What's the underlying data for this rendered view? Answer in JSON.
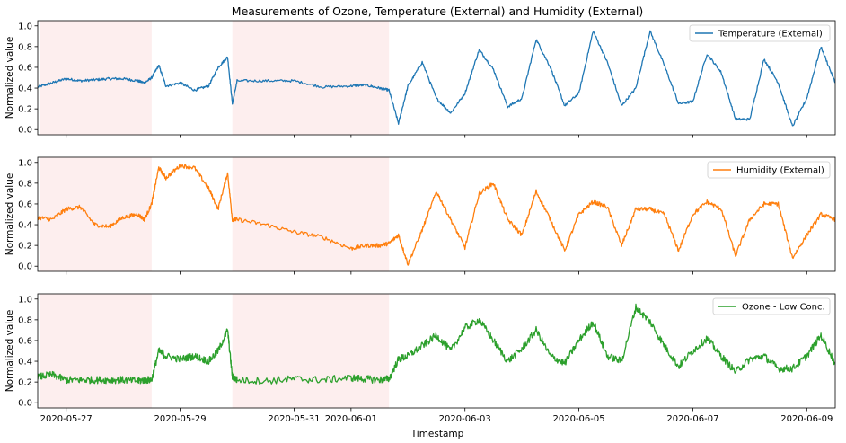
{
  "figure": {
    "title": "Measurements of Ozone, Temperature (External) and Humidity (External)",
    "xlabel": "Timestamp",
    "ylabel": "Normalized value"
  },
  "chart_data": [
    {
      "type": "line",
      "series": [
        {
          "name": "Temperature (External)",
          "color": "#1f77b4",
          "x": [
            "2020-05-26 12:00",
            "2020-05-26 18:00",
            "2020-05-27 00:00",
            "2020-05-27 06:00",
            "2020-05-27 12:00",
            "2020-05-27 18:00",
            "2020-05-28 00:00",
            "2020-05-28 06:00",
            "2020-05-28 09:00",
            "2020-05-28 12:00",
            "2020-05-28 15:00",
            "2020-05-28 18:00",
            "2020-05-29 00:00",
            "2020-05-29 06:00",
            "2020-05-29 12:00",
            "2020-05-29 16:00",
            "2020-05-29 20:00",
            "2020-05-29 22:00",
            "2020-05-30 00:00",
            "2020-05-30 12:00",
            "2020-05-31 00:00",
            "2020-05-31 12:00",
            "2020-06-01 00:00",
            "2020-06-01 06:00",
            "2020-06-01 12:00",
            "2020-06-01 16:00",
            "2020-06-01 20:00",
            "2020-06-02 00:00",
            "2020-06-02 06:00",
            "2020-06-02 12:00",
            "2020-06-02 18:00",
            "2020-06-03 00:00",
            "2020-06-03 06:00",
            "2020-06-03 12:00",
            "2020-06-03 18:00",
            "2020-06-04 00:00",
            "2020-06-04 06:00",
            "2020-06-04 12:00",
            "2020-06-04 18:00",
            "2020-06-05 00:00",
            "2020-06-05 06:00",
            "2020-06-05 12:00",
            "2020-06-05 18:00",
            "2020-06-06 00:00",
            "2020-06-06 06:00",
            "2020-06-06 12:00",
            "2020-06-06 18:00",
            "2020-06-07 00:00",
            "2020-06-07 06:00",
            "2020-06-07 12:00",
            "2020-06-07 18:00",
            "2020-06-08 00:00",
            "2020-06-08 06:00",
            "2020-06-08 12:00",
            "2020-06-08 18:00",
            "2020-06-09 00:00",
            "2020-06-09 06:00",
            "2020-06-09 12:00"
          ],
          "y": [
            0.41,
            0.45,
            0.49,
            0.47,
            0.48,
            0.49,
            0.49,
            0.47,
            0.45,
            0.5,
            0.62,
            0.42,
            0.45,
            0.38,
            0.42,
            0.6,
            0.7,
            0.25,
            0.47,
            0.47,
            0.47,
            0.41,
            0.42,
            0.43,
            0.4,
            0.38,
            0.06,
            0.42,
            0.65,
            0.3,
            0.16,
            0.35,
            0.77,
            0.58,
            0.22,
            0.3,
            0.87,
            0.6,
            0.23,
            0.35,
            0.95,
            0.65,
            0.23,
            0.4,
            0.95,
            0.62,
            0.25,
            0.27,
            0.73,
            0.55,
            0.1,
            0.1,
            0.68,
            0.45,
            0.03,
            0.3,
            0.8,
            0.45
          ],
          "noise": 0.012
        }
      ],
      "ylim": [
        -0.05,
        1.05
      ],
      "yticks": [
        "0.0",
        "0.2",
        "0.4",
        "0.6",
        "0.8",
        "1.0"
      ],
      "legend": "top-right"
    },
    {
      "type": "line",
      "series": [
        {
          "name": "Humidity (External)",
          "color": "#ff7f0e",
          "x": [
            "2020-05-26 12:00",
            "2020-05-26 18:00",
            "2020-05-27 00:00",
            "2020-05-27 06:00",
            "2020-05-27 12:00",
            "2020-05-27 18:00",
            "2020-05-28 00:00",
            "2020-05-28 06:00",
            "2020-05-28 09:00",
            "2020-05-28 12:00",
            "2020-05-28 15:00",
            "2020-05-28 18:00",
            "2020-05-29 00:00",
            "2020-05-29 06:00",
            "2020-05-29 12:00",
            "2020-05-29 16:00",
            "2020-05-29 20:00",
            "2020-05-29 22:00",
            "2020-05-30 00:00",
            "2020-05-30 12:00",
            "2020-05-31 00:00",
            "2020-05-31 12:00",
            "2020-06-01 00:00",
            "2020-06-01 06:00",
            "2020-06-01 12:00",
            "2020-06-01 16:00",
            "2020-06-01 20:00",
            "2020-06-02 00:00",
            "2020-06-02 06:00",
            "2020-06-02 12:00",
            "2020-06-02 18:00",
            "2020-06-03 00:00",
            "2020-06-03 06:00",
            "2020-06-03 12:00",
            "2020-06-03 18:00",
            "2020-06-04 00:00",
            "2020-06-04 06:00",
            "2020-06-04 12:00",
            "2020-06-04 18:00",
            "2020-06-05 00:00",
            "2020-06-05 06:00",
            "2020-06-05 12:00",
            "2020-06-05 18:00",
            "2020-06-06 00:00",
            "2020-06-06 06:00",
            "2020-06-06 12:00",
            "2020-06-06 18:00",
            "2020-06-07 00:00",
            "2020-06-07 06:00",
            "2020-06-07 12:00",
            "2020-06-07 18:00",
            "2020-06-08 00:00",
            "2020-06-08 06:00",
            "2020-06-08 12:00",
            "2020-06-08 18:00",
            "2020-06-09 00:00",
            "2020-06-09 06:00",
            "2020-06-09 12:00"
          ],
          "y": [
            0.47,
            0.45,
            0.55,
            0.57,
            0.4,
            0.38,
            0.47,
            0.5,
            0.45,
            0.6,
            0.95,
            0.85,
            0.97,
            0.95,
            0.75,
            0.55,
            0.9,
            0.45,
            0.45,
            0.4,
            0.33,
            0.28,
            0.17,
            0.2,
            0.2,
            0.22,
            0.3,
            0.02,
            0.35,
            0.72,
            0.45,
            0.18,
            0.7,
            0.8,
            0.45,
            0.3,
            0.72,
            0.45,
            0.15,
            0.5,
            0.62,
            0.57,
            0.2,
            0.55,
            0.55,
            0.5,
            0.15,
            0.5,
            0.62,
            0.55,
            0.1,
            0.45,
            0.6,
            0.6,
            0.08,
            0.3,
            0.5,
            0.45
          ],
          "noise": 0.02
        }
      ],
      "ylim": [
        -0.05,
        1.05
      ],
      "yticks": [
        "0.0",
        "0.2",
        "0.4",
        "0.6",
        "0.8",
        "1.0"
      ],
      "legend": "top-right"
    },
    {
      "type": "line",
      "series": [
        {
          "name": "Ozone - Low Conc.",
          "color": "#2ca02c",
          "x": [
            "2020-05-26 12:00",
            "2020-05-26 18:00",
            "2020-05-27 00:00",
            "2020-05-27 06:00",
            "2020-05-27 12:00",
            "2020-05-27 18:00",
            "2020-05-28 00:00",
            "2020-05-28 06:00",
            "2020-05-28 09:00",
            "2020-05-28 12:00",
            "2020-05-28 15:00",
            "2020-05-28 18:00",
            "2020-05-29 00:00",
            "2020-05-29 06:00",
            "2020-05-29 12:00",
            "2020-05-29 16:00",
            "2020-05-29 20:00",
            "2020-05-29 22:00",
            "2020-05-30 00:00",
            "2020-05-30 12:00",
            "2020-05-31 00:00",
            "2020-05-31 12:00",
            "2020-06-01 00:00",
            "2020-06-01 06:00",
            "2020-06-01 12:00",
            "2020-06-01 16:00",
            "2020-06-01 20:00",
            "2020-06-02 00:00",
            "2020-06-02 06:00",
            "2020-06-02 12:00",
            "2020-06-02 18:00",
            "2020-06-03 00:00",
            "2020-06-03 06:00",
            "2020-06-03 12:00",
            "2020-06-03 18:00",
            "2020-06-04 00:00",
            "2020-06-04 06:00",
            "2020-06-04 12:00",
            "2020-06-04 18:00",
            "2020-06-05 00:00",
            "2020-06-05 06:00",
            "2020-06-05 12:00",
            "2020-06-05 18:00",
            "2020-06-06 00:00",
            "2020-06-06 06:00",
            "2020-06-06 12:00",
            "2020-06-06 18:00",
            "2020-06-07 00:00",
            "2020-06-07 06:00",
            "2020-06-07 12:00",
            "2020-06-07 18:00",
            "2020-06-08 00:00",
            "2020-06-08 06:00",
            "2020-06-08 12:00",
            "2020-06-08 18:00",
            "2020-06-09 00:00",
            "2020-06-09 06:00",
            "2020-06-09 12:00"
          ],
          "y": [
            0.25,
            0.27,
            0.22,
            0.22,
            0.22,
            0.22,
            0.22,
            0.21,
            0.22,
            0.22,
            0.5,
            0.45,
            0.42,
            0.45,
            0.4,
            0.5,
            0.7,
            0.25,
            0.22,
            0.21,
            0.23,
            0.22,
            0.24,
            0.23,
            0.22,
            0.23,
            0.42,
            0.45,
            0.55,
            0.65,
            0.5,
            0.72,
            0.8,
            0.6,
            0.4,
            0.52,
            0.7,
            0.45,
            0.38,
            0.6,
            0.78,
            0.45,
            0.4,
            0.92,
            0.78,
            0.55,
            0.35,
            0.5,
            0.62,
            0.45,
            0.3,
            0.42,
            0.45,
            0.33,
            0.33,
            0.45,
            0.65,
            0.38
          ],
          "noise": 0.035
        }
      ],
      "ylim": [
        -0.05,
        1.05
      ],
      "yticks": [
        "0.0",
        "0.2",
        "0.4",
        "0.6",
        "0.8",
        "1.0"
      ],
      "legend": "top-right"
    }
  ],
  "x_axis": {
    "xlim": [
      "2020-05-26 12:00",
      "2020-06-09 12:00"
    ],
    "ticks": [
      {
        "label": "2020-05-27",
        "date": "2020-05-27 00:00"
      },
      {
        "label": "2020-05-29",
        "date": "2020-05-29 00:00"
      },
      {
        "label": "2020-05-31",
        "date": "2020-05-31 00:00"
      },
      {
        "label": "2020-06-01",
        "date": "2020-06-01 00:00"
      },
      {
        "label": "2020-06-03",
        "date": "2020-06-03 00:00"
      },
      {
        "label": "2020-06-05",
        "date": "2020-06-05 00:00"
      },
      {
        "label": "2020-06-07",
        "date": "2020-06-07 00:00"
      },
      {
        "label": "2020-06-09",
        "date": "2020-06-09 00:00"
      }
    ]
  },
  "highlight_spans": [
    {
      "start": "2020-05-26 13:00",
      "end": "2020-05-28 12:00",
      "color": "#fdeeee"
    },
    {
      "start": "2020-05-29 22:00",
      "end": "2020-06-01 16:00",
      "color": "#fdeeee"
    }
  ]
}
